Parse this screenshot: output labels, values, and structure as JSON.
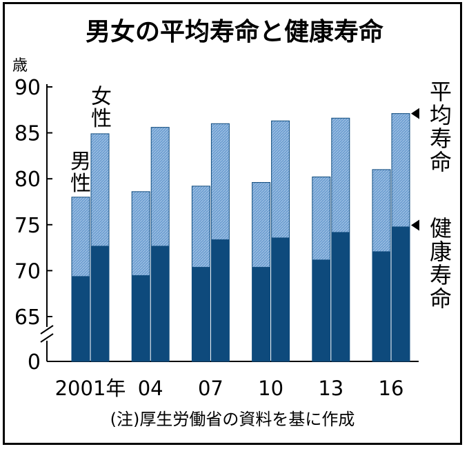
{
  "chart_data": {
    "type": "bar",
    "title": "男女の平均寿命と健康寿命",
    "unit": "歳",
    "categories": [
      "2001年",
      "04",
      "07",
      "10",
      "13",
      "16"
    ],
    "y_ticks": [
      "90",
      "85",
      "80",
      "75",
      "70",
      "65",
      "0"
    ],
    "axis_break": true,
    "ylim": [
      65,
      90
    ],
    "series_labels": {
      "male": "男性",
      "female": "女性"
    },
    "legend": {
      "average": "平均寿命",
      "healthy": "健康寿命"
    },
    "series": [
      {
        "name": "男性",
        "average": [
          78.0,
          78.6,
          79.2,
          79.6,
          80.2,
          81.0
        ],
        "healthy": [
          69.4,
          69.5,
          70.4,
          70.4,
          71.2,
          72.1
        ]
      },
      {
        "name": "女性",
        "average": [
          84.9,
          85.6,
          86.0,
          86.3,
          86.6,
          87.1
        ],
        "healthy": [
          72.7,
          72.7,
          73.4,
          73.6,
          74.2,
          74.8
        ]
      }
    ],
    "colors": {
      "average": "#6f9fd1",
      "healthy": "#0e4a7c"
    },
    "note": "(注)厚生労働省の資料を基に作成"
  }
}
